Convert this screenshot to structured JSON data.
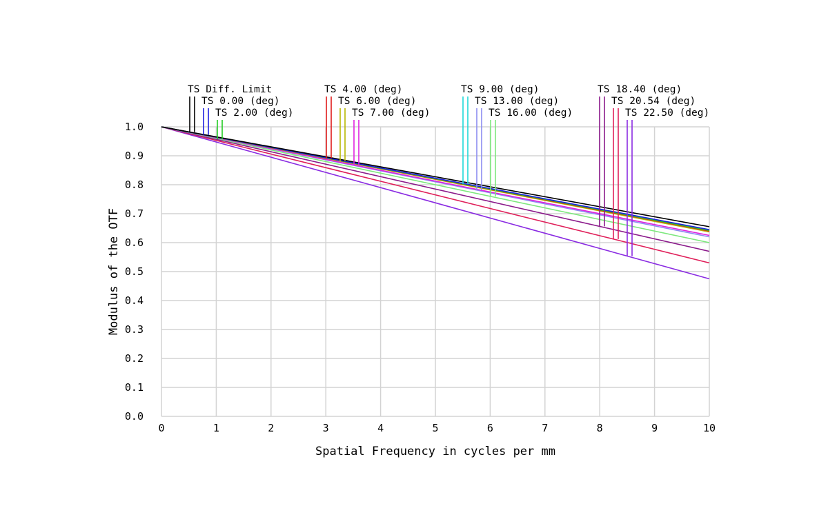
{
  "chart_data": {
    "type": "line",
    "xlabel": "Spatial Frequency in cycles per mm",
    "ylabel": "Modulus of the OTF",
    "xlim": [
      0,
      10
    ],
    "ylim": [
      0,
      1
    ],
    "x_ticks": [
      "0",
      "1",
      "2",
      "3",
      "4",
      "5",
      "6",
      "7",
      "8",
      "9",
      "10"
    ],
    "y_ticks": [
      "0.0",
      "0.1",
      "0.2",
      "0.3",
      "0.4",
      "0.5",
      "0.6",
      "0.7",
      "0.8",
      "0.9",
      "1.0"
    ],
    "grid": true,
    "legend_placement": "top, above plot",
    "series": [
      {
        "name": "TS Diff. Limit",
        "color": "#000000",
        "x": [
          0,
          10
        ],
        "y": [
          1.0,
          0.655
        ]
      },
      {
        "name": "TS 0.00 (deg)",
        "color": "#1f1fe0",
        "x": [
          0,
          10
        ],
        "y": [
          1.0,
          0.645
        ]
      },
      {
        "name": "TS 2.00 (deg)",
        "color": "#22cc22",
        "x": [
          0,
          10
        ],
        "y": [
          1.0,
          0.642
        ]
      },
      {
        "name": "TS 4.00 (deg)",
        "color": "#e01a1a",
        "x": [
          0,
          10
        ],
        "y": [
          1.0,
          0.64
        ]
      },
      {
        "name": "TS 6.00 (deg)",
        "color": "#b7b700",
        "x": [
          0,
          10
        ],
        "y": [
          1.0,
          0.637
        ]
      },
      {
        "name": "TS 7.00 (deg)",
        "color": "#e020e0",
        "x": [
          0,
          10
        ],
        "y": [
          1.0,
          0.625
        ]
      },
      {
        "name": "TS 9.00 (deg)",
        "color": "#1ed8d8",
        "x": [
          0,
          10
        ],
        "y": [
          1.0,
          0.64
        ]
      },
      {
        "name": "TS 13.00 (deg)",
        "color": "#8c8cf0",
        "x": [
          0,
          10
        ],
        "y": [
          1.0,
          0.62
        ]
      },
      {
        "name": "TS 16.00 (deg)",
        "color": "#7de87d",
        "x": [
          0,
          10
        ],
        "y": [
          1.0,
          0.6
        ]
      },
      {
        "name": "TS 18.40 (deg)",
        "color": "#8b1a8b",
        "x": [
          0,
          10
        ],
        "y": [
          1.0,
          0.57
        ]
      },
      {
        "name": "TS 20.54 (deg)",
        "color": "#e0205a",
        "x": [
          0,
          10
        ],
        "y": [
          1.0,
          0.53
        ]
      },
      {
        "name": "TS 22.50 (deg)",
        "color": "#8a2be2",
        "x": [
          0,
          10
        ],
        "y": [
          1.0,
          0.475
        ]
      }
    ]
  }
}
